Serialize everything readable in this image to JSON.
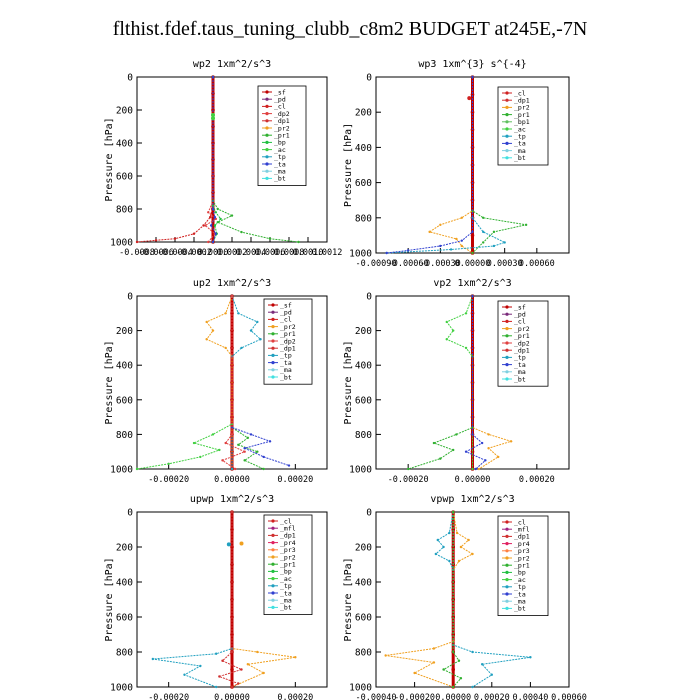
{
  "title": "flthist.fdef.taus_tuning_clubb_c8m2  BUDGET at245E,-7N",
  "colors": {
    "sf": "#c00000",
    "pd": "#7a2a7a",
    "cl": "#d02020",
    "dp2": "#e04040",
    "pr1": "#30b030",
    "pr2": "#f0a020",
    "bp": "#20c040",
    "ac": "#40d040",
    "tp": "#20a0c0",
    "ta": "#3040d0",
    "ma": "#80d0e0",
    "bt": "#40e0e0",
    "dp1": "#d03030",
    "pr3": "#ff8040",
    "pr4": "#e02060",
    "bp1": "#60c060",
    "mfl": "#a02080",
    "main": "#c00000"
  },
  "chart_data": [
    {
      "type": "line",
      "title": "wp2   1xm^2/s^3",
      "ylabel": "Pressure  [hPa]",
      "xlim": [
        -0.0008,
        0.0012
      ],
      "ylim": [
        1000,
        0
      ],
      "x_ticks": [
        -0.0008,
        -0.0006,
        -0.0004,
        -0.0002,
        0.0,
        0.0002,
        0.0004,
        0.0006,
        0.0008,
        0.001,
        0.0012
      ],
      "x_tick_labels": [
        "-0.0008",
        "-0.0006",
        "-0.0004",
        "-0.0002",
        "0.0000",
        "0.0002",
        "0.0004",
        "0.0006",
        "0.0008",
        "0.0010",
        "0.0012"
      ],
      "y_ticks": [
        0,
        200,
        400,
        600,
        800,
        1000
      ],
      "y_tick_labels": [
        "0",
        "200",
        "400",
        "600",
        "800",
        "1000"
      ],
      "legend": [
        "_sf",
        "_pd",
        "_cl",
        "_dp2",
        "_dp1",
        "_pr2",
        "_pr1",
        "_bp",
        "_ac",
        "_tp",
        "_ta",
        "_ma",
        "_bt"
      ],
      "legend_keys": [
        "sf",
        "pd",
        "cl",
        "dp2",
        "dp1",
        "pr2",
        "pr1",
        "bp",
        "ac",
        "tp",
        "ta",
        "ma",
        "bt"
      ],
      "series": [
        {
          "key": "main",
          "x": [
            0,
            0,
            0,
            0,
            0,
            0,
            0,
            0,
            0,
            0,
            0
          ],
          "y": [
            0,
            100,
            200,
            300,
            400,
            500,
            600,
            700,
            800,
            900,
            1000
          ]
        },
        {
          "key": "cl",
          "x": [
            0,
            0,
            -1e-05,
            -3e-05,
            -0.0001,
            -0.0002,
            -0.0004,
            -0.0006,
            -0.0008
          ],
          "y": [
            0,
            600,
            800,
            850,
            900,
            950,
            980,
            990,
            1000
          ]
        },
        {
          "key": "dp2",
          "x": [
            0,
            0,
            -5e-05,
            3e-05,
            -8e-05,
            2e-05,
            -5e-05
          ],
          "y": [
            0,
            750,
            820,
            860,
            900,
            950,
            1000
          ]
        },
        {
          "key": "pr1",
          "x": [
            0,
            0,
            5e-05,
            0.0002,
            5e-05,
            0.0003,
            0.0006,
            0.0009
          ],
          "y": [
            0,
            750,
            800,
            840,
            880,
            940,
            980,
            1000
          ]
        },
        {
          "key": "bp",
          "x": [
            0,
            0,
            3e-05,
            8e-05,
            2e-05,
            4e-05,
            0
          ],
          "y": [
            0,
            780,
            820,
            860,
            900,
            950,
            1000
          ]
        },
        {
          "key": "ta",
          "x": [
            0,
            0,
            2e-05,
            -2e-05,
            3e-05,
            0
          ],
          "y": [
            0,
            800,
            850,
            900,
            950,
            1000
          ]
        }
      ],
      "markers": [
        {
          "key": "ac",
          "x": 0.0,
          "y": 230
        },
        {
          "key": "ac",
          "x": 0.0,
          "y": 250
        }
      ]
    },
    {
      "type": "line",
      "title": "wp3   1xm^{3} s^{-4}",
      "ylabel": "Pressure  [hPa]",
      "xlim": [
        -0.0009,
        0.0009
      ],
      "ylim": [
        1000,
        0
      ],
      "x_ticks": [
        -0.0009,
        -0.0006,
        -0.0003,
        0.0,
        0.0003,
        0.0006
      ],
      "x_tick_labels": [
        "-0.00090",
        "-0.00060",
        "-0.00030",
        "0.00000",
        "0.00030",
        "0.00060"
      ],
      "y_ticks": [
        0,
        200,
        400,
        600,
        800,
        1000
      ],
      "y_tick_labels": [
        "0",
        "200",
        "400",
        "600",
        "800",
        "1000"
      ],
      "legend": [
        "_cl",
        "_dp1",
        "_pr2",
        "_pr1",
        "_bp1",
        "_ac",
        "_tp",
        "_ta",
        "_ma",
        "_bt"
      ],
      "legend_keys": [
        "cl",
        "dp1",
        "pr2",
        "pr1",
        "bp1",
        "ac",
        "tp",
        "ta",
        "ma",
        "bt"
      ],
      "series": [
        {
          "key": "main",
          "x": [
            0,
            0,
            0,
            0,
            0,
            0,
            0,
            0,
            0,
            0,
            0
          ],
          "y": [
            0,
            100,
            200,
            300,
            400,
            500,
            600,
            700,
            800,
            900,
            1000
          ]
        },
        {
          "key": "pr2",
          "x": [
            0,
            0,
            -0.0001,
            -0.0003,
            -0.0004,
            -0.00015,
            -0.0001,
            0
          ],
          "y": [
            0,
            760,
            800,
            840,
            880,
            920,
            960,
            1000
          ]
        },
        {
          "key": "pr1",
          "x": [
            0,
            0,
            0.0001,
            0.0005,
            0.0002,
            0.0001,
            0
          ],
          "y": [
            0,
            760,
            800,
            840,
            880,
            940,
            1000
          ]
        },
        {
          "key": "tp",
          "x": [
            0,
            0,
            0.0001,
            0.0003,
            0.0002,
            -0.0002,
            -0.0008
          ],
          "y": [
            0,
            800,
            880,
            940,
            960,
            980,
            1000
          ]
        },
        {
          "key": "ta",
          "x": [
            0,
            0,
            -0.0001,
            -0.0003,
            -0.0006,
            -0.0008
          ],
          "y": [
            0,
            880,
            930,
            960,
            985,
            1000
          ]
        }
      ],
      "markers": [
        {
          "key": "cl",
          "x": -3e-05,
          "y": 120
        }
      ]
    },
    {
      "type": "line",
      "title": "up2   1xm^2/s^3",
      "ylabel": "Pressure  [hPa]",
      "xlim": [
        -0.0003,
        0.0003
      ],
      "ylim": [
        1000,
        0
      ],
      "x_ticks": [
        -0.0002,
        0.0,
        0.0002
      ],
      "x_tick_labels": [
        "-0.00020",
        "0.00000",
        "0.00020"
      ],
      "y_ticks": [
        0,
        200,
        400,
        600,
        800,
        1000
      ],
      "y_tick_labels": [
        "0",
        "200",
        "400",
        "600",
        "800",
        "1000"
      ],
      "legend": [
        "_sf",
        "_pd",
        "_cl",
        "_pr2",
        "_pr1",
        "_dp2",
        "_dp1",
        "_tp",
        "_ta",
        "_ma",
        "_bt"
      ],
      "legend_keys": [
        "sf",
        "pd",
        "cl",
        "pr2",
        "pr1",
        "dp2",
        "dp1",
        "tp",
        "ta",
        "ma",
        "bt"
      ],
      "series": [
        {
          "key": "main",
          "x": [
            0,
            0,
            0,
            0,
            0,
            0,
            0,
            0,
            0,
            0,
            0
          ],
          "y": [
            0,
            100,
            200,
            300,
            400,
            500,
            600,
            700,
            800,
            900,
            1000
          ]
        },
        {
          "key": "pr2",
          "x": [
            0,
            -2e-05,
            -8e-05,
            -6e-05,
            -8e-05,
            -2e-05,
            0,
            0
          ],
          "y": [
            0,
            100,
            150,
            200,
            250,
            300,
            350,
            1000
          ]
        },
        {
          "key": "tp",
          "x": [
            0,
            2e-05,
            8e-05,
            6e-05,
            9e-05,
            3e-05,
            0,
            0
          ],
          "y": [
            0,
            100,
            150,
            200,
            250,
            300,
            350,
            1000
          ]
        },
        {
          "key": "ac",
          "x": [
            0,
            0,
            -6e-05,
            -0.00012,
            -4e-05,
            -0.0001,
            -0.0002,
            -0.0003
          ],
          "y": [
            0,
            740,
            800,
            850,
            890,
            930,
            970,
            1000
          ]
        },
        {
          "key": "pr1",
          "x": [
            0,
            0,
            5e-05,
            2e-05,
            8e-05,
            4e-05,
            0.0001
          ],
          "y": [
            0,
            760,
            820,
            860,
            900,
            950,
            1000
          ]
        },
        {
          "key": "ta",
          "x": [
            0,
            0,
            6e-05,
            0.00012,
            4e-05,
            0.0001,
            0.00018
          ],
          "y": [
            0,
            760,
            800,
            840,
            880,
            930,
            980
          ]
        },
        {
          "key": "dp2",
          "x": [
            0,
            0,
            -2e-05,
            4e-05,
            -3e-05,
            1e-05
          ],
          "y": [
            0,
            800,
            850,
            900,
            950,
            1000
          ]
        }
      ],
      "markers": []
    },
    {
      "type": "line",
      "title": "vp2   1xm^2/s^3",
      "ylabel": "Pressure  [hPa]",
      "xlim": [
        -0.0003,
        0.0003
      ],
      "ylim": [
        1000,
        0
      ],
      "x_ticks": [
        -0.0002,
        0.0,
        0.0002
      ],
      "x_tick_labels": [
        "-0.00020",
        "0.00000",
        "0.00020"
      ],
      "y_ticks": [
        0,
        200,
        400,
        600,
        800,
        1000
      ],
      "y_tick_labels": [
        "0",
        "200",
        "400",
        "600",
        "800",
        "1000"
      ],
      "legend": [
        "_sf",
        "_pd",
        "_cl",
        "_pr2",
        "_pr1",
        "_dp2",
        "_dp1",
        "_tp",
        "_ta",
        "_ma",
        "_bt"
      ],
      "legend_keys": [
        "sf",
        "pd",
        "cl",
        "pr2",
        "pr1",
        "dp2",
        "dp1",
        "tp",
        "ta",
        "ma",
        "bt"
      ],
      "series": [
        {
          "key": "main",
          "x": [
            0,
            0,
            0,
            0,
            0,
            0,
            0,
            0,
            0,
            0,
            0
          ],
          "y": [
            0,
            100,
            200,
            300,
            400,
            500,
            600,
            700,
            800,
            900,
            1000
          ]
        },
        {
          "key": "ac",
          "x": [
            0,
            -2e-05,
            -8e-05,
            -6e-05,
            -8e-05,
            -2e-05,
            0,
            0
          ],
          "y": [
            0,
            100,
            150,
            200,
            250,
            300,
            350,
            1000
          ]
        },
        {
          "key": "pr2",
          "x": [
            0,
            0,
            5e-05,
            0.00012,
            5e-05,
            8e-05,
            2e-05
          ],
          "y": [
            0,
            760,
            800,
            840,
            880,
            930,
            1000
          ]
        },
        {
          "key": "pr1",
          "x": [
            0,
            0,
            -5e-05,
            -0.00012,
            -6e-05,
            -0.0001,
            -0.0002
          ],
          "y": [
            0,
            760,
            800,
            850,
            890,
            940,
            1000
          ]
        },
        {
          "key": "ta",
          "x": [
            0,
            0,
            3e-05,
            -2e-05,
            4e-05,
            1e-05
          ],
          "y": [
            0,
            800,
            850,
            900,
            950,
            1000
          ]
        }
      ],
      "markers": []
    },
    {
      "type": "line",
      "title": "upwp   1xm^2/s^3",
      "ylabel": "Pressure  [hPa]",
      "xlim": [
        -0.0003,
        0.0003
      ],
      "ylim": [
        1000,
        0
      ],
      "x_ticks": [
        -0.0002,
        0.0,
        0.0002
      ],
      "x_tick_labels": [
        "-0.00020",
        "0.00000",
        "0.00020"
      ],
      "y_ticks": [
        0,
        200,
        400,
        600,
        800,
        1000
      ],
      "y_tick_labels": [
        "0",
        "200",
        "400",
        "600",
        "800",
        "1000"
      ],
      "legend": [
        "_cl",
        "_mfl",
        "_dp1",
        "_pr4",
        "_pr3",
        "_pr2",
        "_pr1",
        "_bp",
        "_ac",
        "_tp",
        "_ta",
        "_ma",
        "_bt"
      ],
      "legend_keys": [
        "cl",
        "mfl",
        "dp1",
        "pr4",
        "pr3",
        "pr2",
        "pr1",
        "bp",
        "ac",
        "tp",
        "ta",
        "ma",
        "bt"
      ],
      "series": [
        {
          "key": "main",
          "x": [
            0,
            0,
            0,
            0,
            0,
            0,
            0,
            0,
            0,
            0,
            0
          ],
          "y": [
            0,
            100,
            200,
            300,
            400,
            500,
            600,
            700,
            800,
            900,
            1000
          ]
        },
        {
          "key": "pr2",
          "x": [
            0,
            0,
            8e-05,
            0.0002,
            5e-05,
            0.0001,
            0
          ],
          "y": [
            0,
            780,
            800,
            830,
            870,
            920,
            1000
          ]
        },
        {
          "key": "tp",
          "x": [
            0,
            0,
            -5e-05,
            -0.00025,
            -0.0001,
            -0.00015,
            -5e-05
          ],
          "y": [
            0,
            780,
            810,
            840,
            880,
            930,
            1000
          ]
        },
        {
          "key": "dp1",
          "x": [
            0,
            0,
            -3e-05,
            3e-05,
            -4e-05,
            2e-05,
            0
          ],
          "y": [
            0,
            800,
            850,
            900,
            940,
            980,
            1000
          ]
        }
      ],
      "markers": [
        {
          "key": "pr2",
          "x": 3e-05,
          "y": 180
        },
        {
          "key": "tp",
          "x": -1e-05,
          "y": 185
        }
      ]
    },
    {
      "type": "line",
      "title": "vpwp   1xm^2/s^3",
      "ylabel": "Pressure  [hPa]",
      "xlim": [
        -0.0004,
        0.0006
      ],
      "ylim": [
        1000,
        0
      ],
      "x_ticks": [
        -0.0004,
        -0.0002,
        0.0,
        0.0002,
        0.0004,
        0.0006
      ],
      "x_tick_labels": [
        "-0.00040",
        "-0.00020",
        "0.00000",
        "0.00020",
        "0.00040",
        "0.00060"
      ],
      "y_ticks": [
        0,
        200,
        400,
        600,
        800,
        1000
      ],
      "y_tick_labels": [
        "0",
        "200",
        "400",
        "600",
        "800",
        "1000"
      ],
      "legend": [
        "_cl",
        "_mfl",
        "_dp1",
        "_pr4",
        "_pr3",
        "_pr2",
        "_pr1",
        "_bp",
        "_ac",
        "_tp",
        "_ta",
        "_ma",
        "_bt"
      ],
      "legend_keys": [
        "cl",
        "mfl",
        "dp1",
        "pr4",
        "pr3",
        "pr2",
        "pr1",
        "bp",
        "ac",
        "tp",
        "ta",
        "ma",
        "bt"
      ],
      "series": [
        {
          "key": "main",
          "x": [
            0,
            0,
            0,
            0,
            0,
            0,
            0,
            0,
            0,
            0,
            0
          ],
          "y": [
            0,
            100,
            200,
            300,
            400,
            500,
            600,
            700,
            800,
            900,
            1000
          ]
        },
        {
          "key": "pr2",
          "x": [
            0,
            2e-05,
            8e-05,
            4e-05,
            0.0001,
            3e-05,
            0
          ],
          "y": [
            0,
            120,
            160,
            200,
            240,
            280,
            330
          ]
        },
        {
          "key": "tp",
          "x": [
            0,
            -2e-05,
            -8e-05,
            -5e-05,
            -9e-05,
            -2e-05,
            0
          ],
          "y": [
            0,
            120,
            160,
            200,
            240,
            280,
            330
          ]
        },
        {
          "key": "pr2",
          "x": [
            0,
            0,
            -0.0001,
            -0.00035,
            -0.0001,
            -0.0002,
            0
          ],
          "y": [
            0,
            740,
            780,
            820,
            860,
            920,
            1000
          ]
        },
        {
          "key": "tp",
          "x": [
            0,
            0,
            0.0001,
            0.0004,
            0.00015,
            0.0002,
            0.0001
          ],
          "y": [
            0,
            760,
            800,
            830,
            870,
            930,
            1000
          ]
        },
        {
          "key": "pr1",
          "x": [
            0,
            0,
            3e-05,
            -5e-05,
            4e-05,
            0
          ],
          "y": [
            0,
            800,
            850,
            900,
            950,
            1000
          ]
        }
      ],
      "markers": []
    }
  ]
}
